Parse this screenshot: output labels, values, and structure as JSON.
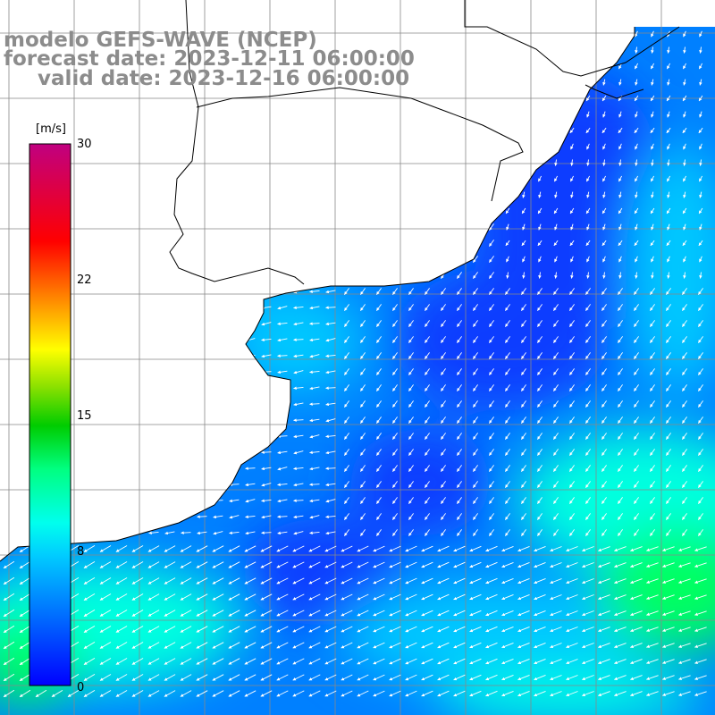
{
  "header": {
    "model": "modelo GEFS-WAVE (NCEP)",
    "forecast": "forecast date: 2023-12-11 06:00:00",
    "valid": "valid date: 2023-12-16 06:00:00"
  },
  "colorbar": {
    "unit": "[m/s]",
    "ticks": [
      "30",
      "22",
      "15",
      "8",
      "0"
    ],
    "tick_values": [
      30,
      22,
      15,
      8,
      0
    ],
    "range": [
      0,
      30
    ],
    "colors": [
      "#0000ff",
      "#00aaff",
      "#00ffff",
      "#00ff40",
      "#00cc00",
      "#ffff00",
      "#ff8000",
      "#ff0000",
      "#c00080"
    ]
  },
  "map": {
    "land_color": "#ffffff",
    "grid_color": "#888888",
    "coast_color": "#000000",
    "arrow_color": "#ffffff",
    "wind_field": "10 m wind speed (shading) with direction arrows",
    "ocean_palette": {
      "calm": "#0a3cff",
      "light": "#0080ff",
      "moderate": "#00c8ff",
      "fresh": "#00ffe0",
      "strong": "#00ff60"
    }
  }
}
